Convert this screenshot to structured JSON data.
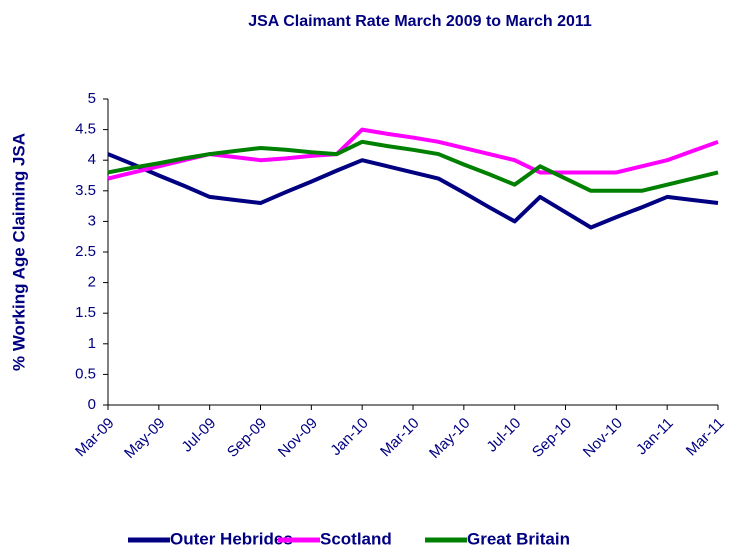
{
  "chart_data": {
    "type": "line",
    "title": "JSA Claimant Rate March 2009 to March 2011",
    "y_label": "% Working Age Claiming JSA",
    "categories": [
      "Mar-09",
      null,
      "May-09",
      null,
      "Jul-09",
      null,
      "Sep-09",
      null,
      "Nov-09",
      null,
      "Jan-10",
      null,
      "Mar-10",
      null,
      "May-10",
      null,
      "Jul-10",
      null,
      "Sep-10",
      null,
      "Nov-10",
      null,
      "Jan-11",
      null,
      "Mar-11"
    ],
    "series": [
      {
        "name": "Outer Hebrides",
        "color": "#000080",
        "values": [
          4.1,
          3.93,
          3.75,
          3.58,
          3.4,
          3.35,
          3.3,
          3.48,
          3.65,
          3.83,
          4.0,
          3.9,
          3.8,
          3.7,
          3.47,
          3.23,
          3.0,
          3.4,
          3.15,
          2.9,
          3.07,
          3.23,
          3.4,
          3.35,
          3.3
        ]
      },
      {
        "name": "Scotland",
        "color": "#ff00ff",
        "values": [
          3.7,
          3.8,
          3.9,
          4.0,
          4.1,
          4.05,
          4.0,
          4.03,
          4.07,
          4.1,
          4.5,
          4.43,
          4.37,
          4.3,
          4.2,
          4.1,
          4.0,
          3.8,
          3.8,
          3.8,
          3.8,
          3.9,
          4.0,
          4.15,
          4.3
        ]
      },
      {
        "name": "Great Britain",
        "color": "#008000",
        "values": [
          3.8,
          3.88,
          3.95,
          4.03,
          4.1,
          4.15,
          4.2,
          4.17,
          4.13,
          4.1,
          4.3,
          4.23,
          4.17,
          4.1,
          3.93,
          3.77,
          3.6,
          3.9,
          3.7,
          3.5,
          3.5,
          3.5,
          3.6,
          3.7,
          3.8
        ]
      }
    ],
    "ylim": [
      0,
      5
    ],
    "yticks": [
      0,
      0.5,
      1,
      1.5,
      2,
      2.5,
      3,
      3.5,
      4,
      4.5,
      5
    ],
    "legend": "bottom"
  }
}
